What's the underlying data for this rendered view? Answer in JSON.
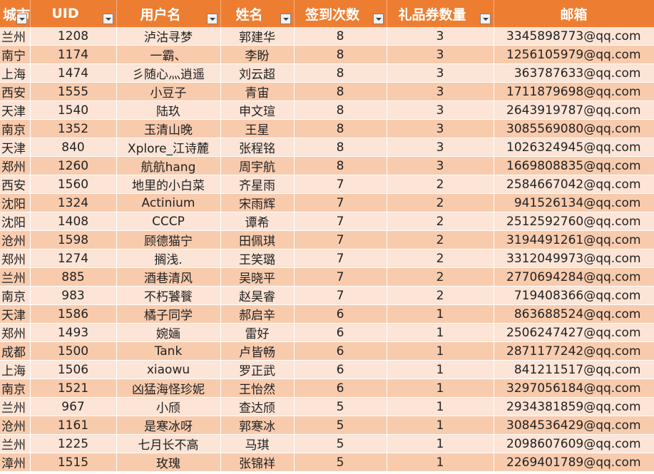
{
  "headers": [
    "城市",
    "UID",
    "用户名",
    "姓名",
    "签到次数",
    "礼品券数量",
    "邮箱"
  ],
  "rows": [
    [
      "兰州",
      "1208",
      "泸沽寻梦",
      "郭建华",
      "8",
      "3",
      "3345898773@qq.com"
    ],
    [
      "南宁",
      "1174",
      "一霸、",
      "李盼",
      "8",
      "3",
      "1256105979@qq.com"
    ],
    [
      "上海",
      "1474",
      "彡随心灬逍遥",
      "刘云超",
      "8",
      "3",
      "363787633@qq.com"
    ],
    [
      "西安",
      "1555",
      "小豆子",
      "青宙",
      "8",
      "3",
      "1711879698@qq.com"
    ],
    [
      "天津",
      "1540",
      "陆玖",
      "申文瑄",
      "8",
      "3",
      "2643919787@qq.com"
    ],
    [
      "南京",
      "1352",
      "玉清山晚",
      "王星",
      "8",
      "3",
      "3085569080@qq.com"
    ],
    [
      "天津",
      "840",
      "Xplore_江诗麓",
      "张程铭",
      "8",
      "3",
      "1026324945@qq.com"
    ],
    [
      "郑州",
      "1260",
      "航航hang",
      "周宇航",
      "8",
      "3",
      "1669808835@qq.com"
    ],
    [
      "西安",
      "1560",
      "地里的小白菜",
      "齐星雨",
      "7",
      "2",
      "2584667042@qq.com"
    ],
    [
      "沈阳",
      "1324",
      "Actinium",
      "宋雨辉",
      "7",
      "2",
      "941526134@qq.com"
    ],
    [
      "沈阳",
      "1408",
      "CCCP",
      "谭希",
      "7",
      "2",
      "2512592760@qq.com"
    ],
    [
      "沧州",
      "1598",
      "顾德猫宁",
      "田佩琪",
      "7",
      "2",
      "3194491261@qq.com"
    ],
    [
      "郑州",
      "1274",
      "搁浅.",
      "王笑璐",
      "7",
      "2",
      "3312049973@qq.com"
    ],
    [
      "兰州",
      "885",
      "酒巷清风",
      "吴晓平",
      "7",
      "2",
      "2770694284@qq.com"
    ],
    [
      "南京",
      "983",
      "不朽饕餮",
      "赵昊睿",
      "7",
      "2",
      "719408366@qq.com"
    ],
    [
      "天津",
      "1586",
      "橘子同学",
      "郝启辛",
      "6",
      "1",
      "863688524@qq.com"
    ],
    [
      "郑州",
      "1493",
      "婉婳",
      "雷好",
      "6",
      "1",
      "2506247427@qq.com"
    ],
    [
      "成都",
      "1500",
      "Tank",
      "卢皆畅",
      "6",
      "1",
      "2871177242@qq.com"
    ],
    [
      "上海",
      "1506",
      "xiaowu",
      "罗正武",
      "6",
      "1",
      "841211517@qq.com"
    ],
    [
      "南京",
      "1521",
      "凶猛海怪珍妮",
      "王怡然",
      "6",
      "1",
      "3297056184@qq.com"
    ],
    [
      "兰州",
      "967",
      "小颀",
      "查达颀",
      "5",
      "1",
      "2934381859@qq.com"
    ],
    [
      "沧州",
      "1161",
      "是寒冰呀",
      "郭寒冰",
      "5",
      "1",
      "3084536429@qq.com"
    ],
    [
      "兰州",
      "1225",
      "七月长不高",
      "马琪",
      "5",
      "1",
      "2098607609@qq.com"
    ],
    [
      "漳州",
      "1515",
      "玫瑰",
      "张锦祥",
      "5",
      "1",
      "2269401789@qq.com"
    ]
  ],
  "colors": {
    "header_bg": "#ed7d31",
    "row_light": "#fce4d6",
    "row_dark": "#f8cbad"
  },
  "icons": {
    "filter": "filter-dropdown-icon"
  }
}
